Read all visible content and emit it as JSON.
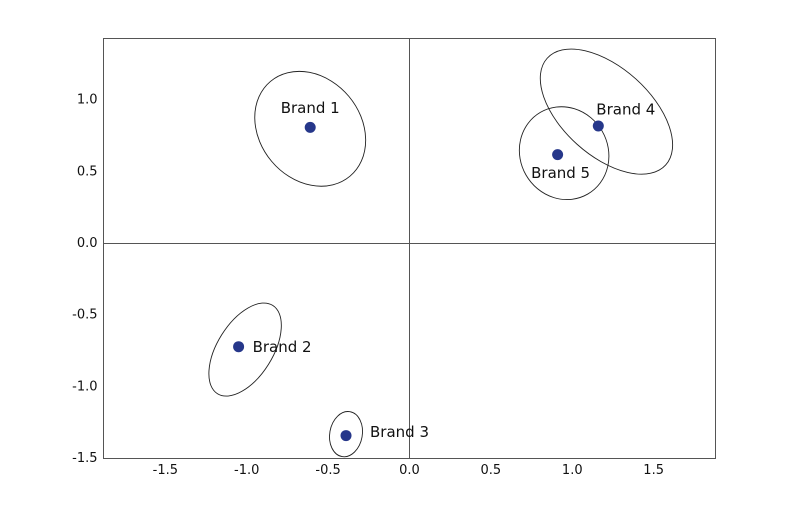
{
  "chart_data": {
    "type": "scatter",
    "xlim": [
      -1.88,
      1.88
    ],
    "ylim": [
      -1.5,
      1.43
    ],
    "xticks": [
      -1.5,
      {
        "value": -1,
        "label": "-1.0"
      },
      -0.5,
      {
        "value": 0,
        "label": "0.0"
      },
      0.5,
      {
        "value": 1,
        "label": "1.0"
      },
      1.5
    ],
    "yticks": [
      {
        "value": 1,
        "label": "1.0"
      },
      0.5,
      {
        "value": 0,
        "label": "0.0"
      },
      -0.5,
      {
        "value": -1,
        "label": "-1.0"
      },
      -1.5
    ],
    "series": [
      {
        "color": "#26378a",
        "x": [
          -0.61,
          -1.05,
          -0.39,
          1.16,
          0.91
        ],
        "values": [
          0.81,
          -0.72,
          -1.34,
          0.82,
          0.62
        ],
        "labels": [
          "Brand 1",
          "Brand 2",
          "Brand 3",
          "Brand 4",
          "Brand 5"
        ],
        "ellipses": [
          {
            "cx": -0.61,
            "cy": 0.8,
            "rx": 0.38,
            "ry": 0.31,
            "angle": 50
          },
          {
            "cx": -1.01,
            "cy": -0.74,
            "rx": 0.32,
            "ry": 0.17,
            "angle": -58
          },
          {
            "cx": -0.39,
            "cy": -1.33,
            "rx": 0.1,
            "ry": 0.14,
            "angle": 10
          },
          {
            "cx": 1.21,
            "cy": 0.92,
            "rx": 0.49,
            "ry": 0.27,
            "angle": 42
          },
          {
            "cx": 0.95,
            "cy": 0.63,
            "rx": 0.29,
            "ry": 0.27,
            "angle": 60
          }
        ]
      }
    ]
  }
}
